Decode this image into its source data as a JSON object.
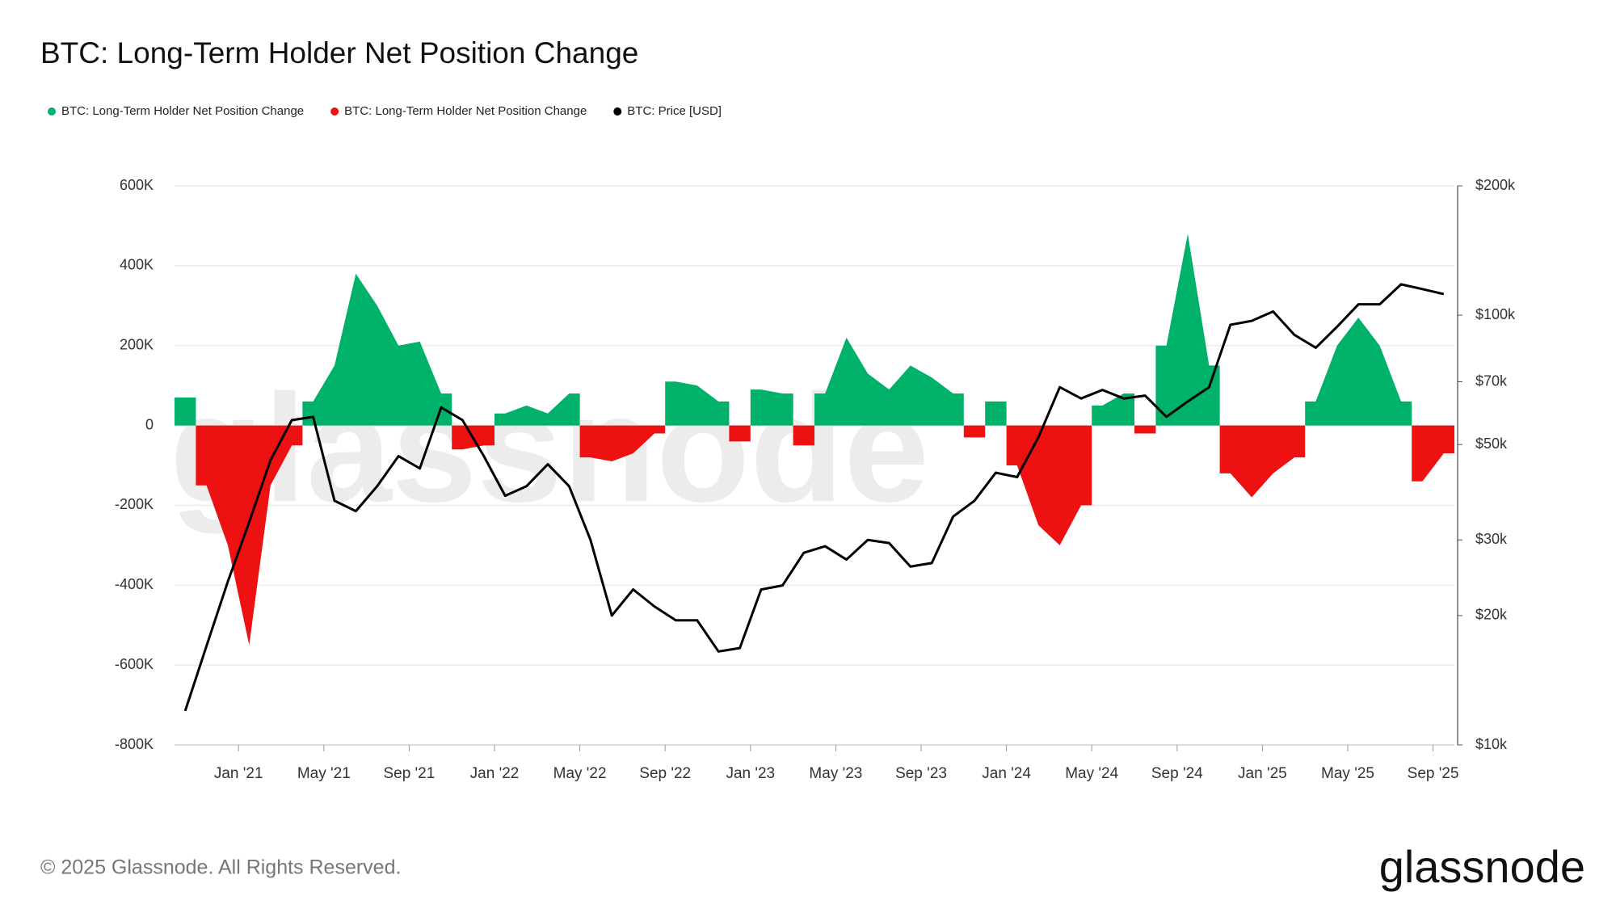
{
  "chart_data": {
    "type": "area",
    "title": "BTC: Long-Term Holder Net Position Change",
    "watermark": "glassnode",
    "legend": "top-left",
    "grid": true,
    "x": [
      "2020-10",
      "2020-11",
      "2020-12",
      "2021-01",
      "2021-02",
      "2021-03",
      "2021-04",
      "2021-05",
      "2021-06",
      "2021-07",
      "2021-08",
      "2021-09",
      "2021-10",
      "2021-11",
      "2021-12",
      "2022-01",
      "2022-02",
      "2022-03",
      "2022-04",
      "2022-05",
      "2022-06",
      "2022-07",
      "2022-08",
      "2022-09",
      "2022-10",
      "2022-11",
      "2022-12",
      "2023-01",
      "2023-02",
      "2023-03",
      "2023-04",
      "2023-05",
      "2023-06",
      "2023-07",
      "2023-08",
      "2023-09",
      "2023-10",
      "2023-11",
      "2023-12",
      "2024-01",
      "2024-02",
      "2024-03",
      "2024-04",
      "2024-05",
      "2024-06",
      "2024-07",
      "2024-08",
      "2024-09",
      "2024-10",
      "2024-11",
      "2024-12",
      "2025-01",
      "2025-02",
      "2025-03",
      "2025-04",
      "2025-05",
      "2025-06",
      "2025-07",
      "2025-08",
      "2025-09"
    ],
    "xticks": [
      {
        "value": "2021-01",
        "label": "Jan '21"
      },
      {
        "value": "2021-05",
        "label": "May '21"
      },
      {
        "value": "2021-09",
        "label": "Sep '21"
      },
      {
        "value": "2022-01",
        "label": "Jan '22"
      },
      {
        "value": "2022-05",
        "label": "May '22"
      },
      {
        "value": "2022-09",
        "label": "Sep '22"
      },
      {
        "value": "2023-01",
        "label": "Jan '23"
      },
      {
        "value": "2023-05",
        "label": "May '23"
      },
      {
        "value": "2023-09",
        "label": "Sep '23"
      },
      {
        "value": "2024-01",
        "label": "Jan '24"
      },
      {
        "value": "2024-05",
        "label": "May '24"
      },
      {
        "value": "2024-09",
        "label": "Sep '24"
      },
      {
        "value": "2025-01",
        "label": "Jan '25"
      },
      {
        "value": "2025-05",
        "label": "May '25"
      },
      {
        "value": "2025-09",
        "label": "Sep '25"
      }
    ],
    "ylim": [
      -800000,
      600000
    ],
    "yticks": [
      {
        "value": -800000,
        "label": "-800K"
      },
      {
        "value": -600000,
        "label": "-600K"
      },
      {
        "value": -400000,
        "label": "-400K"
      },
      {
        "value": -200000,
        "label": "-200K"
      },
      0,
      {
        "value": 200000,
        "label": "200K"
      },
      {
        "value": 400000,
        "label": "400K"
      },
      {
        "value": 600000,
        "label": "600K"
      }
    ],
    "y2lim": [
      10000,
      200000
    ],
    "y2scale": "log",
    "y2ticks": [
      {
        "value": 10000,
        "label": "$10k"
      },
      {
        "value": 20000,
        "label": "$20k"
      },
      {
        "value": 30000,
        "label": "$30k"
      },
      {
        "value": 50000,
        "label": "$50k"
      },
      {
        "value": 70000,
        "label": "$70k"
      },
      {
        "value": 100000,
        "label": "$100k"
      },
      {
        "value": 200000,
        "label": "$200k"
      }
    ],
    "series": [
      {
        "name": "BTC: Long-Term Holder Net Position Change",
        "color": "#00b16a",
        "values": [
          70000,
          null,
          null,
          null,
          null,
          null,
          60000,
          150000,
          380000,
          300000,
          200000,
          210000,
          80000,
          null,
          null,
          30000,
          50000,
          30000,
          80000,
          null,
          null,
          null,
          null,
          110000,
          100000,
          60000,
          null,
          90000,
          80000,
          null,
          80000,
          220000,
          130000,
          90000,
          150000,
          120000,
          80000,
          null,
          60000,
          null,
          null,
          null,
          null,
          50000,
          80000,
          null,
          200000,
          480000,
          150000,
          null,
          null,
          null,
          null,
          60000,
          200000,
          270000,
          200000,
          60000,
          null,
          null
        ]
      },
      {
        "name": "BTC: Long-Term Holder Net Position Change",
        "color": "#ee1111",
        "values": [
          null,
          -150000,
          -300000,
          -550000,
          -150000,
          -50000,
          null,
          null,
          null,
          null,
          null,
          null,
          null,
          -60000,
          -50000,
          null,
          null,
          null,
          null,
          -80000,
          -90000,
          -70000,
          -20000,
          null,
          null,
          null,
          -40000,
          null,
          null,
          -50000,
          null,
          null,
          null,
          null,
          null,
          null,
          null,
          -30000,
          null,
          -100000,
          -250000,
          -300000,
          -200000,
          null,
          null,
          -20000,
          null,
          null,
          null,
          -120000,
          -180000,
          -120000,
          -80000,
          null,
          null,
          null,
          null,
          null,
          -140000,
          -70000
        ]
      },
      {
        "name": "BTC: Price [USD]",
        "color": "#000000",
        "axis": "y2",
        "values": [
          12000,
          17000,
          24000,
          33000,
          46000,
          57000,
          58000,
          37000,
          35000,
          40000,
          47000,
          44000,
          61000,
          57000,
          47000,
          38000,
          40000,
          45000,
          40000,
          30000,
          20000,
          23000,
          21000,
          19500,
          19500,
          16500,
          16800,
          23000,
          23500,
          28000,
          29000,
          27000,
          30000,
          29500,
          26000,
          26500,
          34000,
          37000,
          43000,
          42000,
          52000,
          68000,
          64000,
          67000,
          64000,
          65000,
          58000,
          63000,
          68000,
          95000,
          97000,
          102000,
          90000,
          84000,
          94000,
          106000,
          106000,
          118000,
          115000,
          112000
        ]
      }
    ]
  },
  "footer": {
    "copyright": "© 2025 Glassnode. All Rights Reserved.",
    "logo": "glassnode"
  }
}
